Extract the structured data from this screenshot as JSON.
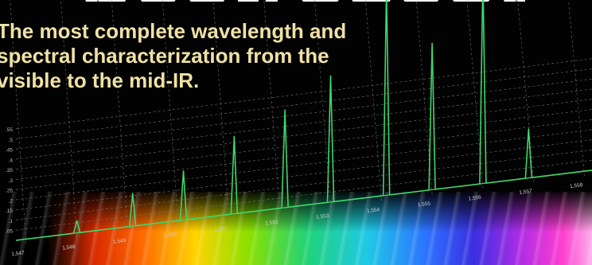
{
  "banner": {
    "headline_fragment": "pectroscopy",
    "tagline_lines": [
      "The most complete wavelength and",
      "spectral characterization from the",
      "visible to the mid-IR."
    ]
  },
  "chart_data": {
    "type": "line",
    "title": "",
    "xlabel": "",
    "ylabel": "",
    "y_ticks": [
      ".05",
      ".1",
      ".15",
      ".2",
      ".25",
      ".3",
      ".35",
      ".4",
      ".45",
      ".5",
      ".55"
    ],
    "x_ticks": [
      "1,547",
      "1,548",
      "1,549",
      "1,550",
      "1,551",
      "1,552",
      "1,553",
      "1,554",
      "1,555",
      "1,556",
      "1,557",
      "1,558"
    ],
    "peaks": [
      {
        "x": 1548.0,
        "y": 0.06
      },
      {
        "x": 1549.1,
        "y": 0.16
      },
      {
        "x": 1550.1,
        "y": 0.24
      },
      {
        "x": 1551.1,
        "y": 0.38
      },
      {
        "x": 1552.1,
        "y": 0.48
      },
      {
        "x": 1553.0,
        "y": 0.62
      },
      {
        "x": 1554.1,
        "y": 1.02
      },
      {
        "x": 1555.0,
        "y": 0.72
      },
      {
        "x": 1556.0,
        "y": 1.02
      },
      {
        "x": 1556.9,
        "y": 0.24
      }
    ],
    "ylim": [
      0,
      1.1
    ],
    "grid": true,
    "line_color": "#3fd66a",
    "grid_color": "#7a7a7a",
    "background_color": "#020202",
    "text_color": "#efe1a4"
  }
}
